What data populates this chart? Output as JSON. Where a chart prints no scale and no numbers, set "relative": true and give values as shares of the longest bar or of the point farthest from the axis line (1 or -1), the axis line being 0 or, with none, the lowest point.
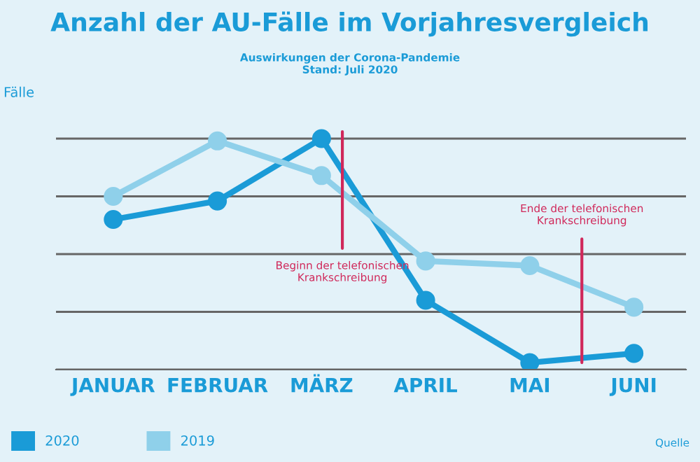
{
  "chart_data": {
    "type": "line",
    "title": "Anzahl der AU-Fälle im Vorjahresvergleich",
    "subtitle": "Auswirkungen der Corona-Pandemie\nStand: Juli 2020",
    "ylabel": "Fälle",
    "relative": true,
    "categories": [
      "JANUAR",
      "FEBRUAR",
      "MÄRZ",
      "APRIL",
      "MAI",
      "JUNI"
    ],
    "series": [
      {
        "name": "2020",
        "color": "#1a9bd7",
        "values": [
          0.65,
          0.73,
          1,
          0.3,
          0.03,
          0.07
        ]
      },
      {
        "name": "2019",
        "color": "#8fd0ea",
        "values": [
          0.75,
          0.99,
          0.84,
          0.47,
          0.45,
          0.27
        ]
      }
    ],
    "annotations": [
      "Beginn der telefonischen\nKrankschreibung",
      "Ende der telefonischen\nKrankschreibung",
      "Quelle"
    ],
    "grid": "y",
    "legend": "bottom left",
    "marker": "circle",
    "line_style": "solid"
  }
}
